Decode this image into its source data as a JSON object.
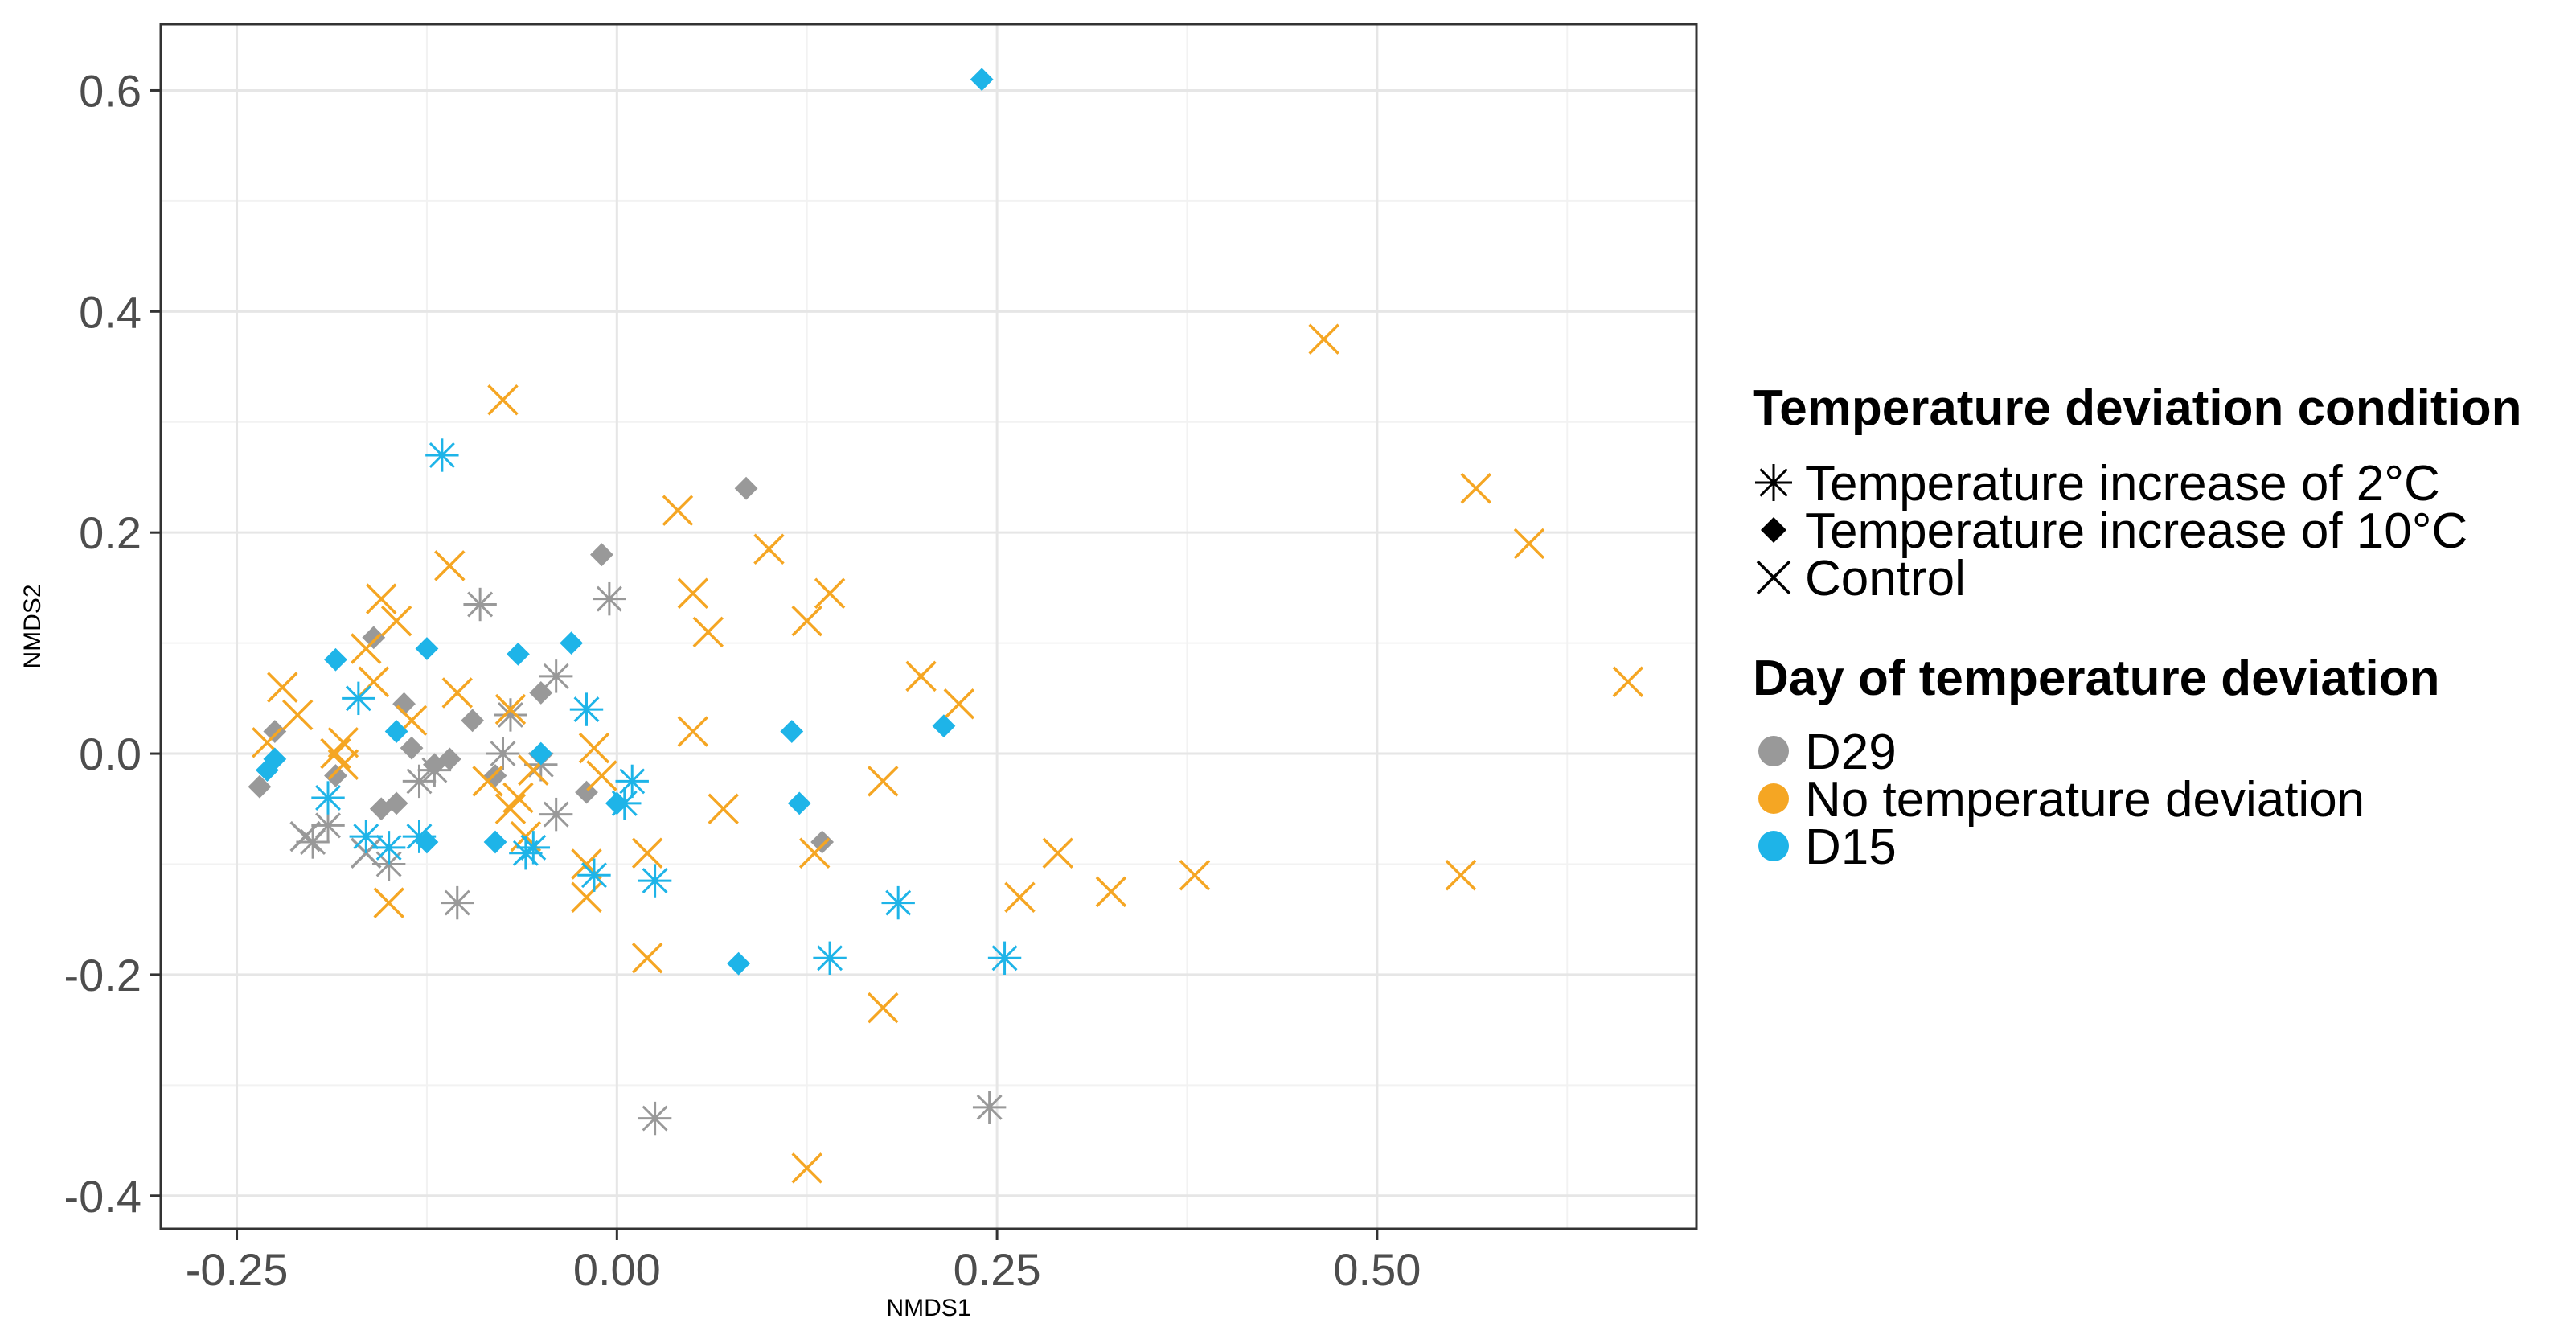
{
  "chart_data": {
    "type": "scatter",
    "title": "",
    "xlabel": "NMDS1",
    "ylabel": "NMDS2",
    "xlim": [
      -0.3,
      0.71
    ],
    "ylim": [
      -0.43,
      0.66
    ],
    "x_ticks": [
      -0.25,
      0.0,
      0.25,
      0.5
    ],
    "x_tick_labels": [
      "-0.25",
      "0.00",
      "0.25",
      "0.50"
    ],
    "y_ticks": [
      -0.4,
      -0.2,
      0.0,
      0.2,
      0.4,
      0.6
    ],
    "y_tick_labels": [
      "-0.4",
      "-0.2",
      "0.0",
      "0.2",
      "0.4",
      "0.6"
    ],
    "grid": true,
    "legend_placement": "right",
    "colors": {
      "D29": "#999999",
      "No temperature deviation": "#F5A623",
      "D15": "#1EB4E8"
    },
    "legend": {
      "shape_title": "Temperature deviation condition",
      "shape_items": [
        {
          "label": "Temperature increase of 2°C",
          "shape": "asterisk"
        },
        {
          "label": "Temperature increase of 10°C",
          "shape": "diamond"
        },
        {
          "label": "Control",
          "shape": "cross"
        }
      ],
      "color_title": "Day of temperature deviation",
      "color_items": [
        {
          "label": "D29",
          "color": "#999999"
        },
        {
          "label": "No temperature deviation",
          "color": "#F5A623"
        },
        {
          "label": "D15",
          "color": "#1EB4E8"
        }
      ]
    },
    "series": [
      {
        "name": "D29 / Temperature increase of 2°C",
        "color": "#999999",
        "shape": "asterisk",
        "x": [
          -0.2,
          -0.19,
          -0.15,
          -0.13,
          -0.12,
          -0.105,
          -0.09,
          -0.075,
          -0.07,
          -0.05,
          -0.04,
          -0.04,
          -0.005,
          0.025,
          0.245
        ],
        "y": [
          -0.08,
          -0.065,
          -0.1,
          -0.025,
          -0.015,
          -0.135,
          0.135,
          0.0,
          0.035,
          -0.01,
          -0.055,
          0.07,
          0.14,
          -0.33,
          -0.32
        ]
      },
      {
        "name": "D29 / Temperature increase of 10°C",
        "color": "#999999",
        "shape": "diamond",
        "x": [
          -0.235,
          -0.225,
          -0.185,
          -0.16,
          -0.155,
          -0.145,
          -0.14,
          -0.135,
          -0.12,
          -0.11,
          -0.095,
          -0.08,
          -0.05,
          -0.02,
          -0.01,
          0.085,
          0.135
        ],
        "y": [
          -0.03,
          0.02,
          -0.02,
          0.105,
          -0.05,
          -0.045,
          0.045,
          0.005,
          -0.01,
          -0.005,
          0.03,
          -0.02,
          0.055,
          -0.035,
          0.18,
          0.24,
          -0.08
        ]
      },
      {
        "name": "D29 / Control",
        "color": "#999999",
        "shape": "cross",
        "x": [
          -0.205,
          -0.165
        ],
        "y": [
          -0.075,
          -0.09
        ]
      },
      {
        "name": "No temperature deviation / Control",
        "color": "#F5A623",
        "shape": "cross",
        "x": [
          -0.23,
          -0.22,
          -0.21,
          -0.185,
          -0.18,
          -0.18,
          -0.165,
          -0.16,
          -0.155,
          -0.15,
          -0.145,
          -0.135,
          -0.11,
          -0.105,
          -0.085,
          -0.075,
          -0.07,
          -0.07,
          -0.065,
          -0.06,
          -0.055,
          -0.02,
          -0.02,
          -0.015,
          -0.01,
          0.02,
          0.02,
          0.04,
          0.05,
          0.05,
          0.06,
          0.07,
          0.1,
          0.125,
          0.125,
          0.13,
          0.14,
          0.175,
          0.175,
          0.2,
          0.225,
          0.265,
          0.29,
          0.325,
          0.38,
          0.465,
          0.555,
          0.565,
          0.6,
          0.665
        ],
        "y": [
          0.01,
          0.06,
          0.035,
          0.0,
          -0.01,
          0.01,
          0.095,
          0.065,
          0.14,
          -0.135,
          0.12,
          0.03,
          0.17,
          0.055,
          -0.025,
          0.32,
          0.04,
          -0.05,
          -0.04,
          -0.075,
          -0.015,
          -0.1,
          -0.13,
          0.005,
          -0.02,
          -0.09,
          -0.185,
          0.22,
          0.145,
          0.02,
          0.11,
          -0.05,
          0.185,
          0.12,
          -0.375,
          -0.09,
          0.145,
          -0.025,
          -0.23,
          0.07,
          0.045,
          -0.13,
          -0.09,
          -0.125,
          -0.11,
          0.375,
          -0.11,
          0.24,
          0.19,
          0.065
        ]
      },
      {
        "name": "D15 / Temperature increase of 2°C",
        "color": "#1EB4E8",
        "shape": "asterisk",
        "x": [
          -0.19,
          -0.17,
          -0.165,
          -0.15,
          -0.13,
          -0.115,
          -0.06,
          -0.055,
          -0.02,
          -0.015,
          0.005,
          0.01,
          0.025,
          0.14,
          0.185,
          0.255
        ],
        "y": [
          -0.04,
          0.05,
          -0.075,
          -0.085,
          -0.075,
          0.27,
          -0.09,
          -0.085,
          0.04,
          -0.11,
          -0.045,
          -0.025,
          -0.115,
          -0.185,
          -0.135,
          -0.185
        ]
      },
      {
        "name": "D15 / Temperature increase of 10°C",
        "color": "#1EB4E8",
        "shape": "diamond",
        "x": [
          -0.23,
          -0.225,
          -0.185,
          -0.145,
          -0.125,
          -0.125,
          -0.08,
          -0.065,
          -0.05,
          -0.03,
          0.0,
          0.08,
          0.115,
          0.12,
          0.215,
          0.24
        ],
        "y": [
          -0.015,
          -0.005,
          0.085,
          0.02,
          -0.08,
          0.095,
          -0.08,
          0.09,
          0.0,
          0.1,
          -0.045,
          -0.19,
          0.02,
          -0.045,
          0.025,
          0.61
        ]
      }
    ]
  }
}
